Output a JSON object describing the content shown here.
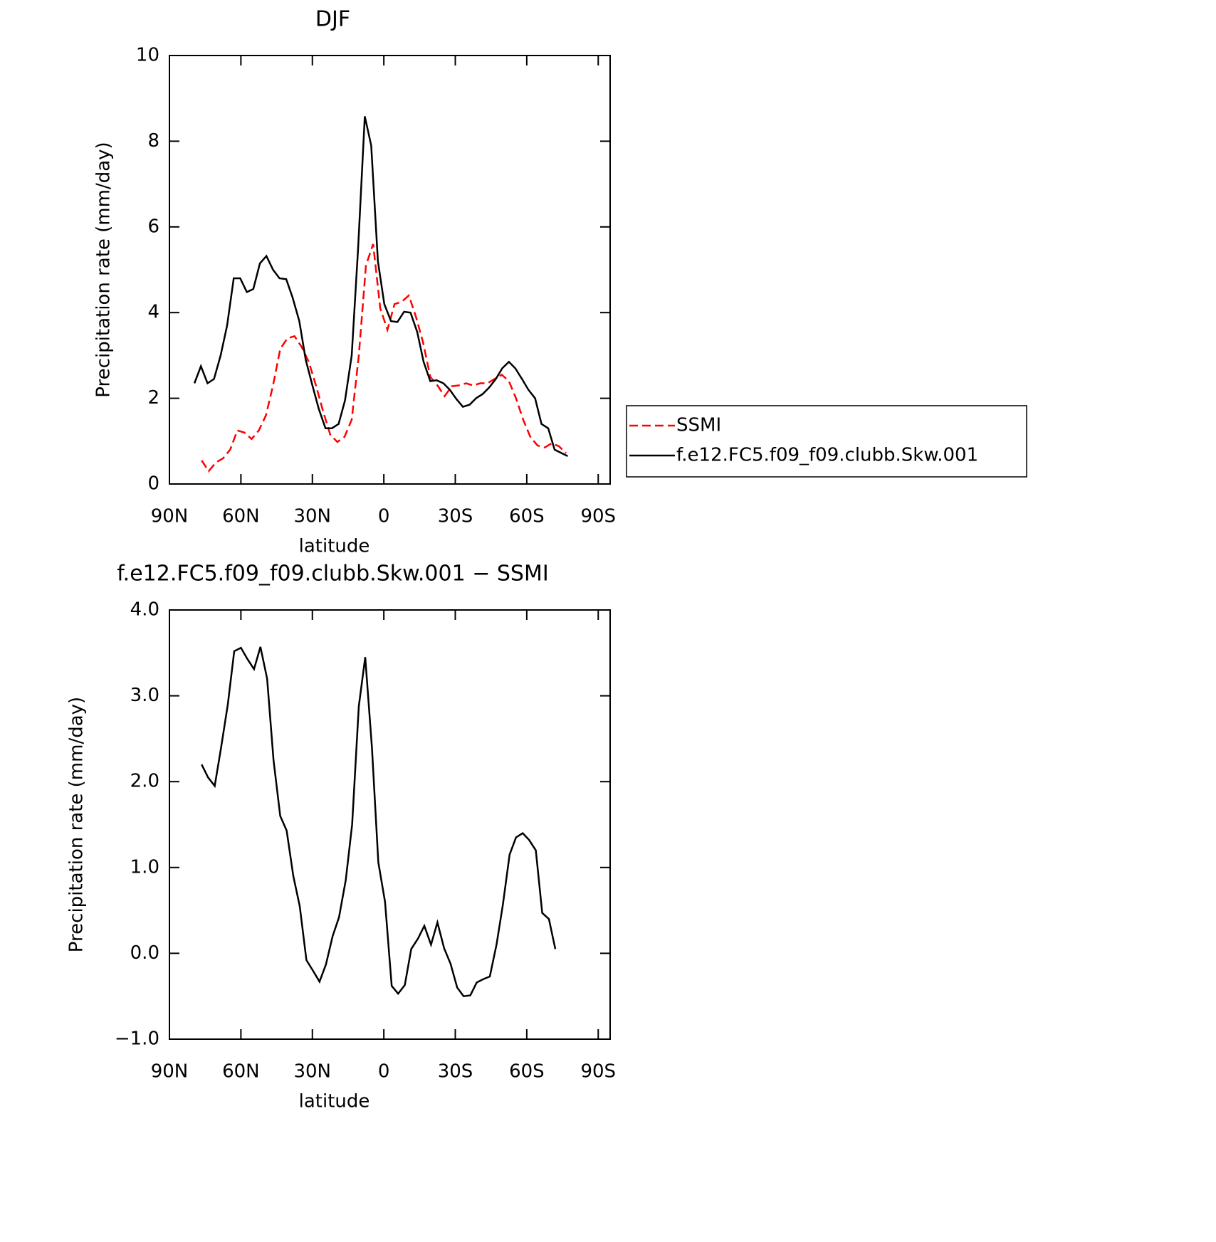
{
  "chart_data": [
    {
      "type": "line",
      "title": "DJF",
      "xlabel": "latitude",
      "ylabel": "Precipitation rate (mm/day)",
      "xlim": [
        90,
        -95
      ],
      "ylim": [
        0,
        10
      ],
      "xticks": [
        {
          "value": 90,
          "label": "90N"
        },
        {
          "value": 60,
          "label": "60N"
        },
        {
          "value": 30,
          "label": "30N"
        },
        0,
        {
          "value": -30,
          "label": "30S"
        },
        {
          "value": -60,
          "label": "60S"
        },
        {
          "value": -90,
          "label": "90S"
        }
      ],
      "yticks": [
        0,
        2,
        4,
        6,
        8,
        10
      ],
      "legend": "outside-right",
      "series": [
        {
          "name": "SSMI",
          "color": "#ff0000",
          "line_style": "dashed",
          "x": [
            76.5,
            73.5,
            70.5,
            67.5,
            64.5,
            61.5,
            58.5,
            55.5,
            52.5,
            49.5,
            46.5,
            43.5,
            40.5,
            37.5,
            34.5,
            31.5,
            28.5,
            25.5,
            22.5,
            19.5,
            16.5,
            13.5,
            10.5,
            7.5,
            4.5,
            1.5,
            -1.5,
            -4.5,
            -7.5,
            -10.5,
            -13.5,
            -16.5,
            -19.5,
            -22.5,
            -25.5,
            -28.5,
            -31.5,
            -34.5,
            -37.5,
            -40.5,
            -43.5,
            -46.5,
            -49.5,
            -52.5,
            -55.5,
            -58.5,
            -61.5,
            -64.5,
            -67.5,
            -70.5,
            -73.5,
            -76.5
          ],
          "values": [
            0.55,
            0.3,
            0.5,
            0.6,
            0.8,
            1.25,
            1.2,
            1.05,
            1.25,
            1.6,
            2.3,
            3.15,
            3.4,
            3.45,
            3.2,
            2.85,
            2.3,
            1.7,
            1.15,
            0.98,
            1.1,
            1.5,
            3.0,
            5.1,
            5.6,
            4.1,
            3.6,
            4.2,
            4.25,
            4.4,
            3.9,
            3.3,
            2.5,
            2.3,
            2.05,
            2.28,
            2.3,
            2.35,
            2.3,
            2.35,
            2.35,
            2.45,
            2.55,
            2.4,
            2.0,
            1.5,
            1.1,
            0.9,
            0.85,
            0.95,
            0.88,
            0.72
          ]
        },
        {
          "name": "f.e12.FC5.f09_f09.clubb.Skw.001",
          "color": "#000000",
          "line_style": "solid",
          "x": [
            79.5,
            76.8,
            74.0,
            71.3,
            68.5,
            65.8,
            63.0,
            60.3,
            57.5,
            54.8,
            52.0,
            49.3,
            46.5,
            43.8,
            41.0,
            38.3,
            35.5,
            32.8,
            30.0,
            27.3,
            24.5,
            21.8,
            19.0,
            16.3,
            13.5,
            10.8,
            8.0,
            5.3,
            2.5,
            -0.2,
            -3.0,
            -5.7,
            -8.5,
            -11.2,
            -14.0,
            -16.7,
            -19.5,
            -22.2,
            -25.0,
            -27.7,
            -30.5,
            -33.2,
            -36.0,
            -38.7,
            -41.5,
            -44.2,
            -47.0,
            -49.7,
            -52.5,
            -55.2,
            -58.0,
            -60.7,
            -63.5,
            -66.2,
            -69.0,
            -71.7,
            -77.2
          ],
          "values": [
            2.35,
            2.75,
            2.35,
            2.45,
            3.0,
            3.7,
            4.8,
            4.8,
            4.48,
            4.55,
            5.15,
            5.32,
            5.0,
            4.8,
            4.78,
            4.35,
            3.8,
            2.9,
            2.3,
            1.75,
            1.3,
            1.3,
            1.4,
            1.95,
            3.0,
            5.5,
            8.58,
            7.9,
            5.2,
            4.2,
            3.8,
            3.78,
            4.02,
            4.0,
            3.55,
            2.85,
            2.4,
            2.42,
            2.35,
            2.2,
            1.98,
            1.8,
            1.85,
            2.0,
            2.1,
            2.25,
            2.45,
            2.7,
            2.85,
            2.7,
            2.45,
            2.2,
            2.0,
            1.4,
            1.3,
            0.8,
            0.65
          ]
        }
      ]
    },
    {
      "type": "line",
      "title": "f.e12.FC5.f09_f09.clubb.Skw.001 − SSMI",
      "xlabel": "latitude",
      "ylabel": "Precipitation rate (mm/day)",
      "xlim": [
        90,
        -95
      ],
      "ylim": [
        -1,
        4
      ],
      "xticks": [
        {
          "value": 90,
          "label": "90N"
        },
        {
          "value": 60,
          "label": "60N"
        },
        {
          "value": 30,
          "label": "30N"
        },
        0,
        {
          "value": -30,
          "label": "30S"
        },
        {
          "value": -60,
          "label": "60S"
        },
        {
          "value": -90,
          "label": "90S"
        }
      ],
      "yticks": [
        {
          "value": -1,
          "label": "−1.0"
        },
        {
          "value": 0,
          "label": "0.0"
        },
        {
          "value": 1,
          "label": "1.0"
        },
        {
          "value": 2,
          "label": "2.0"
        },
        {
          "value": 3,
          "label": "3.0"
        },
        {
          "value": 4,
          "label": "4.0"
        }
      ],
      "series": [
        {
          "color": "#000000",
          "line_style": "solid",
          "x": [
            76.5,
            73.8,
            71.0,
            68.3,
            65.5,
            62.8,
            60.0,
            57.3,
            54.5,
            51.8,
            49.0,
            46.3,
            43.5,
            40.8,
            38.0,
            35.3,
            32.5,
            29.8,
            27.0,
            24.3,
            21.5,
            18.8,
            16.0,
            13.3,
            10.5,
            7.8,
            5.0,
            2.3,
            -0.5,
            -3.3,
            -6.0,
            -8.8,
            -11.5,
            -14.3,
            -17.0,
            -19.8,
            -22.5,
            -25.3,
            -28.0,
            -30.8,
            -33.5,
            -36.3,
            -39.0,
            -41.8,
            -44.5,
            -47.3,
            -50.0,
            -52.8,
            -55.5,
            -58.3,
            -61.0,
            -63.8,
            -66.5,
            -69.3,
            -72.0
          ],
          "values": [
            2.2,
            2.05,
            1.95,
            2.4,
            2.9,
            3.52,
            3.56,
            3.43,
            3.31,
            3.57,
            3.2,
            2.25,
            1.6,
            1.43,
            0.9,
            0.55,
            -0.08,
            -0.2,
            -0.33,
            -0.13,
            0.2,
            0.42,
            0.85,
            1.5,
            2.88,
            3.45,
            2.4,
            1.06,
            0.6,
            -0.38,
            -0.47,
            -0.37,
            0.05,
            0.17,
            0.32,
            0.1,
            0.36,
            0.06,
            -0.12,
            -0.4,
            -0.5,
            -0.49,
            -0.34,
            -0.3,
            -0.27,
            0.1,
            0.57,
            1.15,
            1.35,
            1.4,
            1.32,
            1.2,
            0.47,
            0.4,
            0.05
          ]
        }
      ]
    }
  ]
}
